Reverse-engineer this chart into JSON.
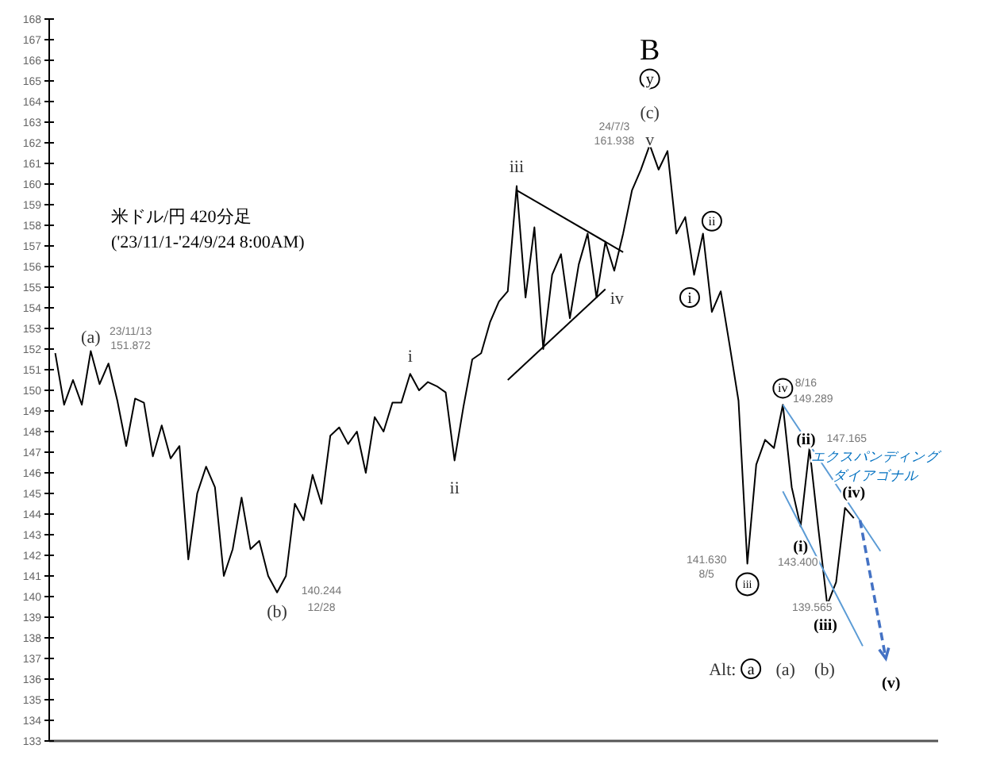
{
  "chart_data": {
    "type": "line",
    "title": "米ドル/円 420分足",
    "subtitle": "('23/11/1-'24/9/24 8:00AM)",
    "categories": [
      null,
      null,
      null,
      null,
      null,
      null,
      null,
      null,
      null,
      null,
      null,
      null,
      null,
      null,
      null,
      null,
      null,
      null,
      null,
      null,
      null,
      null,
      null,
      null,
      null,
      null,
      null,
      null,
      null,
      null,
      null,
      null,
      null,
      null,
      null,
      null,
      null,
      null,
      null,
      null,
      null,
      null,
      null,
      null,
      null,
      null,
      null,
      null,
      null,
      null,
      null,
      null,
      null,
      null,
      null,
      null,
      null,
      null,
      null,
      null,
      null,
      null,
      null,
      null,
      null,
      null,
      null,
      null,
      null,
      null,
      null,
      null,
      null,
      null,
      null,
      null,
      null,
      null,
      null,
      null,
      null,
      null,
      null,
      null,
      null,
      null,
      null,
      null,
      null,
      null,
      null,
      null,
      null,
      null,
      null,
      null,
      null,
      null,
      null,
      null
    ],
    "ylim": [
      133,
      168
    ],
    "yticks": [
      133,
      134,
      135,
      136,
      137,
      138,
      139,
      140,
      141,
      142,
      143,
      144,
      145,
      146,
      147,
      148,
      149,
      150,
      151,
      152,
      153,
      154,
      155,
      156,
      157,
      158,
      159,
      160,
      161,
      162,
      163,
      164,
      165,
      166,
      167,
      168
    ],
    "tick_labels": "y",
    "grid": false,
    "series": [
      {
        "color": "#000000",
        "values": [
          151.8,
          149.3,
          150.5,
          149.3,
          151.9,
          150.3,
          151.3,
          149.5,
          147.3,
          149.6,
          149.4,
          146.8,
          148.3,
          146.7,
          147.3,
          141.8,
          145.0,
          146.3,
          145.3,
          141.0,
          142.3,
          144.8,
          142.3,
          142.7,
          141.0,
          140.2,
          141.0,
          144.5,
          143.7,
          145.9,
          144.5,
          147.8,
          148.2,
          147.4,
          148.0,
          146.0,
          148.7,
          148.0,
          149.4,
          149.4,
          150.8,
          150.0,
          150.4,
          150.2,
          149.9,
          146.6,
          149.2,
          151.5,
          151.8,
          153.3,
          154.3,
          154.8,
          159.9,
          154.5,
          157.9,
          152.0,
          155.6,
          156.6,
          153.5,
          156.1,
          157.6,
          154.5,
          157.2,
          155.8,
          157.6,
          159.7,
          160.7,
          161.9,
          160.7,
          161.6,
          157.6,
          158.4,
          155.6,
          157.6,
          153.8,
          154.8,
          152.2,
          149.5,
          141.6,
          146.4,
          147.6,
          147.2,
          149.3,
          145.3,
          143.4,
          147.2,
          143.3,
          139.6,
          140.7,
          144.3,
          143.8,
          null,
          null,
          null,
          null,
          null,
          null,
          null,
          null,
          null
        ]
      },
      {
        "type": "line",
        "color": "#000000",
        "values": [
          null,
          null,
          null,
          null,
          null,
          null,
          null,
          null,
          null,
          null,
          null,
          null,
          null,
          null,
          null,
          null,
          null,
          null,
          null,
          null,
          null,
          null,
          null,
          null,
          null,
          null,
          null,
          null,
          null,
          null,
          null,
          null,
          null,
          null,
          null,
          null,
          null,
          null,
          null,
          null,
          null,
          null,
          null,
          null,
          null,
          null,
          null,
          null,
          null,
          null,
          null,
          null,
          159.7,
          null,
          null,
          null,
          null,
          null,
          null,
          null,
          null,
          null,
          null,
          null,
          156.7,
          null,
          null,
          null,
          null,
          null,
          null,
          null,
          null,
          null,
          null,
          null,
          null,
          null,
          null,
          null,
          null,
          null,
          null,
          null,
          null,
          null,
          null,
          null,
          null,
          null,
          null,
          null,
          null,
          null,
          null,
          null,
          null,
          null,
          null,
          null
        ]
      },
      {
        "type": "line",
        "color": "#000000",
        "values": [
          null,
          null,
          null,
          null,
          null,
          null,
          null,
          null,
          null,
          null,
          null,
          null,
          null,
          null,
          null,
          null,
          null,
          null,
          null,
          null,
          null,
          null,
          null,
          null,
          null,
          null,
          null,
          null,
          null,
          null,
          null,
          null,
          null,
          null,
          null,
          null,
          null,
          null,
          null,
          null,
          null,
          null,
          null,
          null,
          null,
          null,
          null,
          null,
          null,
          null,
          null,
          150.5,
          null,
          null,
          null,
          null,
          null,
          null,
          null,
          null,
          null,
          null,
          154.9,
          null,
          null,
          null,
          null,
          null,
          null,
          null,
          null,
          null,
          null,
          null,
          null,
          null,
          null,
          null,
          null,
          null,
          null,
          null,
          null,
          null,
          null,
          null,
          null,
          null,
          null,
          null,
          null,
          null,
          null,
          null,
          null,
          null,
          null,
          null,
          null,
          null
        ]
      },
      {
        "type": "line",
        "color": "#5b9bd5",
        "values": [
          null,
          null,
          null,
          null,
          null,
          null,
          null,
          null,
          null,
          null,
          null,
          null,
          null,
          null,
          null,
          null,
          null,
          null,
          null,
          null,
          null,
          null,
          null,
          null,
          null,
          null,
          null,
          null,
          null,
          null,
          null,
          null,
          null,
          null,
          null,
          null,
          null,
          null,
          null,
          null,
          null,
          null,
          null,
          null,
          null,
          null,
          null,
          null,
          null,
          null,
          null,
          null,
          null,
          null,
          null,
          null,
          null,
          null,
          null,
          null,
          null,
          null,
          null,
          null,
          null,
          null,
          null,
          null,
          null,
          null,
          null,
          null,
          null,
          null,
          null,
          null,
          null,
          null,
          null,
          null,
          null,
          null,
          149.3,
          null,
          null,
          null,
          null,
          null,
          null,
          null,
          null,
          null,
          null,
          142.2,
          null,
          null,
          null,
          null,
          null,
          null
        ]
      },
      {
        "type": "line",
        "color": "#5b9bd5",
        "values": [
          null,
          null,
          null,
          null,
          null,
          null,
          null,
          null,
          null,
          null,
          null,
          null,
          null,
          null,
          null,
          null,
          null,
          null,
          null,
          null,
          null,
          null,
          null,
          null,
          null,
          null,
          null,
          null,
          null,
          null,
          null,
          null,
          null,
          null,
          null,
          null,
          null,
          null,
          null,
          null,
          null,
          null,
          null,
          null,
          null,
          null,
          null,
          null,
          null,
          null,
          null,
          null,
          null,
          null,
          null,
          null,
          null,
          null,
          null,
          null,
          null,
          null,
          null,
          null,
          null,
          null,
          null,
          null,
          null,
          null,
          null,
          null,
          null,
          null,
          null,
          null,
          null,
          null,
          null,
          null,
          null,
          null,
          145.1,
          null,
          null,
          null,
          null,
          null,
          null,
          null,
          null,
          137.6,
          null,
          null,
          null,
          null,
          null,
          null,
          null,
          null
        ]
      }
    ],
    "annotations": [
      "(a)",
      "23/11/13",
      "151.872",
      "(b)",
      "140.244",
      "12/28",
      "i",
      "ii",
      "iii",
      "iv",
      "24/7/3",
      "161.938",
      "v",
      "(c)",
      "y",
      "B",
      "ii",
      "i",
      "iv",
      "8/16",
      "149.289",
      "(ii)",
      "147.165",
      "エクスパンディング",
      "ダイアゴナル",
      "(iv)",
      "(i)",
      "143.400",
      "141.630",
      "8/5",
      "iii",
      "139.565",
      "(iii)",
      "Alt:",
      "a",
      "(a)",
      "(b)",
      "(v)"
    ]
  }
}
